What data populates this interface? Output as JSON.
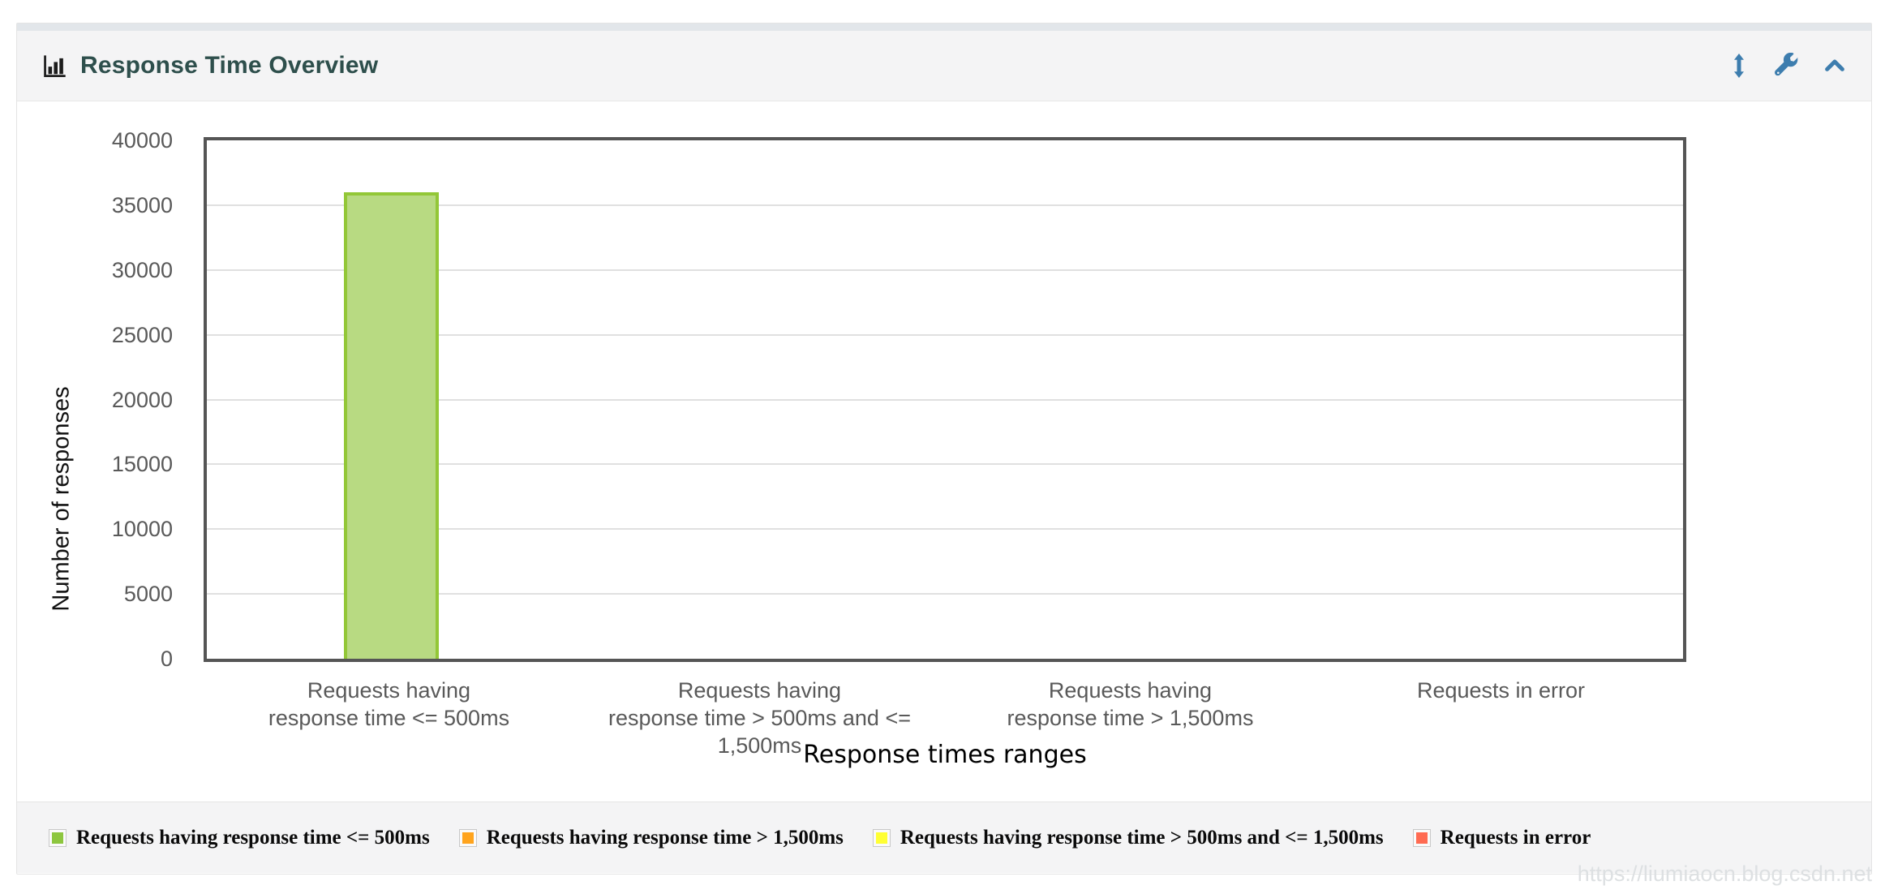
{
  "panel": {
    "title": "Response Time Overview",
    "header_icons": [
      {
        "name": "resize-vertical-icon"
      },
      {
        "name": "wrench-icon"
      },
      {
        "name": "collapse-chevron-icon"
      }
    ],
    "icon_color": "#3d7dae",
    "title_color": "#2e4f4c"
  },
  "chart_data": {
    "type": "bar",
    "title": "Response Time Overview",
    "xlabel": "Response times ranges",
    "ylabel": "Number of responses",
    "ylim": [
      0,
      40000
    ],
    "y_tick_step": 5000,
    "grid": true,
    "legend_position": "bottom",
    "categories": [
      "Requests having response time <= 500ms",
      "Requests having response time > 500ms and <= 1,500ms",
      "Requests having response time > 1,500ms",
      "Requests in error"
    ],
    "category_label_lines": [
      [
        "Requests having",
        "response time <= 500ms"
      ],
      [
        "Requests having",
        "response time > 500ms and <= 1,500ms"
      ],
      [
        "Requests having",
        "response time > 1,500ms"
      ],
      [
        "Requests in error"
      ]
    ],
    "values": [
      36000,
      0,
      0,
      0
    ],
    "bar_fill": "#b8da82",
    "bar_border": "#93c737",
    "plot_border_color": "#555555",
    "gridline_color": "#e0e0e0"
  },
  "legend": {
    "items": [
      {
        "label": "Requests having response time <= 500ms",
        "color": "#8dc63f"
      },
      {
        "label": "Requests having response time > 1,500ms",
        "color": "#ffa41e"
      },
      {
        "label": "Requests having response time > 500ms and <= 1,500ms",
        "color": "#ffff33"
      },
      {
        "label": "Requests in error",
        "color": "#ff6b52"
      }
    ]
  },
  "watermark": "https://liumiaocn.blog.csdn.net"
}
